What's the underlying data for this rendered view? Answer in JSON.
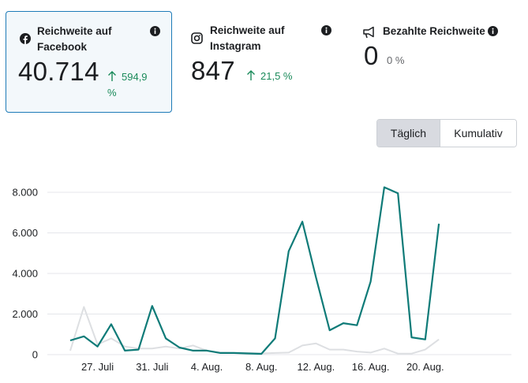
{
  "cards": [
    {
      "title": "Reichweite auf Facebook",
      "value": "40.714",
      "change": "594,9 %",
      "icon": "facebook-icon",
      "selected": true
    },
    {
      "title": "Reichweite auf Instagram",
      "value": "847",
      "change": "21,5 %",
      "icon": "instagram-icon",
      "selected": false
    },
    {
      "title": "Bezahlte Reichweite",
      "value": "0",
      "change": "0 %",
      "icon": "megaphone-icon",
      "selected": false
    }
  ],
  "toggle": {
    "daily": "Täglich",
    "cumulative": "Kumulativ",
    "active": "daily"
  },
  "colors": {
    "facebook": "#0f7b78",
    "instagram": "#dddfe2",
    "grid": "#e4e6eb",
    "axis_text": "#1c1e21",
    "positive": "#1a8a5a"
  },
  "chart_data": {
    "type": "line",
    "title": "",
    "xlabel": "",
    "ylabel": "",
    "ylim": [
      0,
      8000
    ],
    "y_ticks": [
      "0",
      "2.000",
      "4.000",
      "6.000",
      "8.000"
    ],
    "x_tick_labels": [
      "27. Juli",
      "31. Juli",
      "4. Aug.",
      "8. Aug.",
      "12. Aug.",
      "16. Aug.",
      "20. Aug."
    ],
    "x_tick_indices": [
      2,
      6,
      10,
      14,
      18,
      22,
      26
    ],
    "series": [
      {
        "name": "Facebook",
        "values": [
          700,
          900,
          400,
          1500,
          200,
          250,
          2400,
          800,
          350,
          200,
          200,
          80,
          80,
          60,
          40,
          800,
          5100,
          6550,
          3800,
          1200,
          1550,
          1450,
          3600,
          8250,
          7950,
          850,
          750,
          6450
        ]
      },
      {
        "name": "Instagram",
        "values": [
          200,
          2350,
          500,
          800,
          400,
          300,
          300,
          400,
          300,
          450,
          200,
          100,
          80,
          80,
          60,
          80,
          100,
          450,
          550,
          250,
          250,
          150,
          100,
          300,
          50,
          50,
          250,
          750
        ]
      }
    ]
  }
}
